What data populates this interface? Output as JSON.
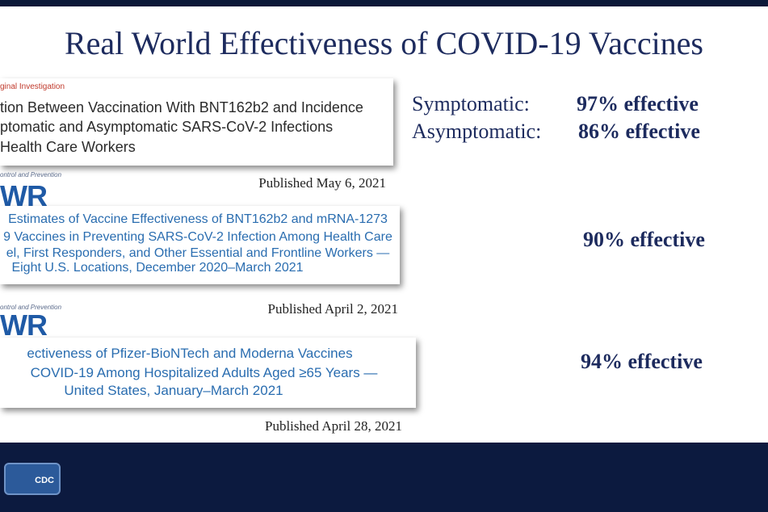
{
  "title": "Real World Effectiveness of COVID-19 Vaccines",
  "studies": [
    {
      "label": "ginal Investigation",
      "lines": [
        "tion Between Vaccination With BNT162b2 and Incidence",
        "ptomatic and Asymptomatic SARS-CoV-2 Infections",
        "Health Care Workers"
      ],
      "published": "Published May 6, 2021",
      "results": [
        {
          "label": "Symptomatic:",
          "value": "97% effective"
        },
        {
          "label": "Asymptomatic:",
          "value": "86% effective"
        }
      ]
    },
    {
      "label": "ontrol and Prevention",
      "journal": "WR",
      "lines": [
        "Estimates of Vaccine Effectiveness of BNT162b2 and mRNA-1273",
        "9 Vaccines in Preventing SARS-CoV-2 Infection Among Health Care",
        "el, First Responders, and Other Essential and Frontline Workers —",
        "Eight U.S. Locations, December 2020–March 2021"
      ],
      "published": "Published April 2, 2021",
      "results": [
        {
          "value": "90% effective"
        }
      ]
    },
    {
      "label": "ontrol and Prevention",
      "journal": "WR",
      "lines": [
        "ectiveness of Pfizer-BioNTech and Moderna Vaccines",
        "COVID-19 Among Hospitalized Adults Aged ≥65 Years —",
        "United States, January–March 2021"
      ],
      "published": "Published April 28, 2021",
      "results": [
        {
          "value": "94% effective"
        }
      ]
    }
  ],
  "logo": "CDC"
}
